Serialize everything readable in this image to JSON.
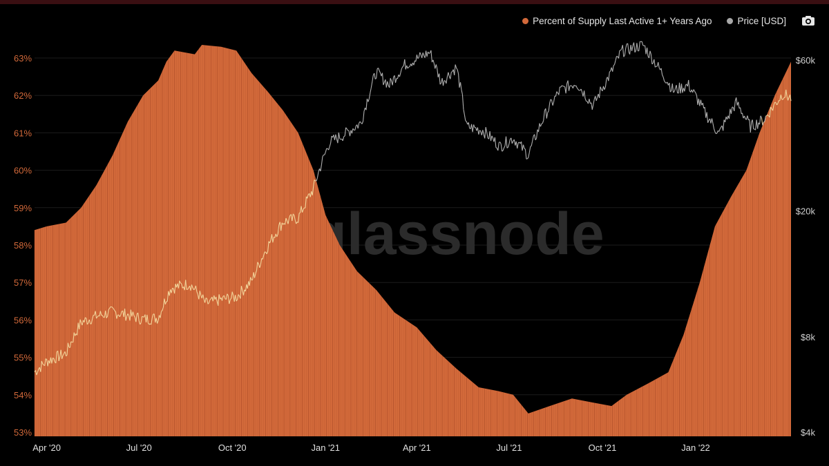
{
  "legend": {
    "supply_label": "Percent of Supply Last Active 1+ Years Ago",
    "price_label": "Price [USD]",
    "supply_color": "#d2693a",
    "price_color": "#a8a8a8",
    "camera_icon": "camera-icon"
  },
  "watermark": "glassnode",
  "chart_data": {
    "type": "area",
    "x_axis": {
      "type": "date",
      "range": [
        "2020-03-20",
        "2022-04-05"
      ],
      "ticks": [
        {
          "date": "2020-04-01",
          "label": "Apr '20"
        },
        {
          "date": "2020-07-01",
          "label": "Jul '20"
        },
        {
          "date": "2020-10-01",
          "label": "Oct '20"
        },
        {
          "date": "2021-01-01",
          "label": "Jan '21"
        },
        {
          "date": "2021-04-01",
          "label": "Apr '21"
        },
        {
          "date": "2021-07-01",
          "label": "Jul '21"
        },
        {
          "date": "2021-10-01",
          "label": "Oct '21"
        },
        {
          "date": "2022-01-01",
          "label": "Jan '22"
        }
      ]
    },
    "y_left": {
      "range": [
        53,
        63.6
      ],
      "ticks": [
        {
          "value": 53,
          "label": "53%"
        },
        {
          "value": 54,
          "label": "54%"
        },
        {
          "value": 55,
          "label": "55%"
        },
        {
          "value": 56,
          "label": "56%"
        },
        {
          "value": 57,
          "label": "57%"
        },
        {
          "value": 58,
          "label": "58%"
        },
        {
          "value": 59,
          "label": "59%"
        },
        {
          "value": 60,
          "label": "60%"
        },
        {
          "value": 61,
          "label": "61%"
        },
        {
          "value": 62,
          "label": "62%"
        },
        {
          "value": 63,
          "label": "63%"
        }
      ]
    },
    "y_right": {
      "scale": "log",
      "range": [
        4000,
        75000
      ],
      "ticks": [
        {
          "value": 4000,
          "label": "$4k"
        },
        {
          "value": 8000,
          "label": "$8k"
        },
        {
          "value": 20000,
          "label": "$20k"
        },
        {
          "value": 60000,
          "label": "$60k"
        }
      ]
    },
    "grid": true,
    "series": [
      {
        "name": "Percent of Supply Last Active 1+ Years Ago",
        "axis": "left",
        "color": "#d2693a",
        "points": [
          [
            "2020-03-20",
            58.4
          ],
          [
            "2020-04-01",
            58.5
          ],
          [
            "2020-04-20",
            58.6
          ],
          [
            "2020-05-05",
            59.0
          ],
          [
            "2020-05-20",
            59.6
          ],
          [
            "2020-06-05",
            60.4
          ],
          [
            "2020-06-20",
            61.3
          ],
          [
            "2020-07-05",
            62.0
          ],
          [
            "2020-07-20",
            62.4
          ],
          [
            "2020-07-28",
            62.9
          ],
          [
            "2020-08-05",
            63.2
          ],
          [
            "2020-08-25",
            63.1
          ],
          [
            "2020-09-01",
            63.35
          ],
          [
            "2020-09-20",
            63.3
          ],
          [
            "2020-10-05",
            63.2
          ],
          [
            "2020-10-20",
            62.6
          ],
          [
            "2020-11-05",
            62.1
          ],
          [
            "2020-11-20",
            61.6
          ],
          [
            "2020-12-05",
            61.0
          ],
          [
            "2020-12-20",
            60.0
          ],
          [
            "2021-01-01",
            58.8
          ],
          [
            "2021-01-15",
            58.0
          ],
          [
            "2021-02-01",
            57.3
          ],
          [
            "2021-02-20",
            56.8
          ],
          [
            "2021-03-10",
            56.2
          ],
          [
            "2021-04-01",
            55.8
          ],
          [
            "2021-04-20",
            55.2
          ],
          [
            "2021-05-10",
            54.7
          ],
          [
            "2021-06-01",
            54.2
          ],
          [
            "2021-06-20",
            54.1
          ],
          [
            "2021-07-05",
            54.0
          ],
          [
            "2021-07-20",
            53.5
          ],
          [
            "2021-08-10",
            53.7
          ],
          [
            "2021-09-01",
            53.9
          ],
          [
            "2021-09-20",
            53.8
          ],
          [
            "2021-10-10",
            53.7
          ],
          [
            "2021-10-25",
            54.0
          ],
          [
            "2021-11-15",
            54.3
          ],
          [
            "2021-12-05",
            54.6
          ],
          [
            "2021-12-20",
            55.6
          ],
          [
            "2022-01-05",
            57.0
          ],
          [
            "2022-01-20",
            58.5
          ],
          [
            "2022-02-05",
            59.3
          ],
          [
            "2022-02-20",
            60.0
          ],
          [
            "2022-03-05",
            61.0
          ],
          [
            "2022-03-20",
            62.0
          ],
          [
            "2022-04-05",
            62.9
          ]
        ]
      },
      {
        "name": "Price [USD]",
        "axis": "right",
        "color": "#b0b0b0",
        "color_low": "#f2d49a",
        "points": [
          [
            "2020-03-20",
            6200
          ],
          [
            "2020-04-01",
            6700
          ],
          [
            "2020-04-20",
            7100
          ],
          [
            "2020-05-05",
            8900
          ],
          [
            "2020-05-20",
            9300
          ],
          [
            "2020-06-05",
            9600
          ],
          [
            "2020-06-20",
            9400
          ],
          [
            "2020-07-05",
            9100
          ],
          [
            "2020-07-20",
            9200
          ],
          [
            "2020-08-01",
            11400
          ],
          [
            "2020-08-20",
            11800
          ],
          [
            "2020-09-05",
            10200
          ],
          [
            "2020-09-20",
            10500
          ],
          [
            "2020-10-05",
            10700
          ],
          [
            "2020-10-20",
            12000
          ],
          [
            "2020-11-05",
            15500
          ],
          [
            "2020-11-20",
            18500
          ],
          [
            "2020-12-05",
            19000
          ],
          [
            "2020-12-20",
            23500
          ],
          [
            "2021-01-05",
            33000
          ],
          [
            "2021-01-20",
            35000
          ],
          [
            "2021-02-05",
            38000
          ],
          [
            "2021-02-20",
            55000
          ],
          [
            "2021-03-05",
            50000
          ],
          [
            "2021-03-20",
            58000
          ],
          [
            "2021-04-14",
            63500
          ],
          [
            "2021-04-25",
            51000
          ],
          [
            "2021-05-10",
            57000
          ],
          [
            "2021-05-20",
            37000
          ],
          [
            "2021-06-05",
            36000
          ],
          [
            "2021-06-22",
            32000
          ],
          [
            "2021-07-05",
            34000
          ],
          [
            "2021-07-20",
            30000
          ],
          [
            "2021-08-05",
            40000
          ],
          [
            "2021-08-20",
            48000
          ],
          [
            "2021-09-05",
            51000
          ],
          [
            "2021-09-22",
            43000
          ],
          [
            "2021-10-10",
            55000
          ],
          [
            "2021-10-20",
            64000
          ],
          [
            "2021-11-10",
            67000
          ],
          [
            "2021-11-25",
            57000
          ],
          [
            "2021-12-10",
            48000
          ],
          [
            "2021-12-25",
            50000
          ],
          [
            "2022-01-10",
            41000
          ],
          [
            "2022-01-24",
            35000
          ],
          [
            "2022-02-10",
            44000
          ],
          [
            "2022-02-24",
            37000
          ],
          [
            "2022-03-10",
            39000
          ],
          [
            "2022-03-28",
            47000
          ],
          [
            "2022-04-05",
            45500
          ]
        ]
      }
    ]
  }
}
